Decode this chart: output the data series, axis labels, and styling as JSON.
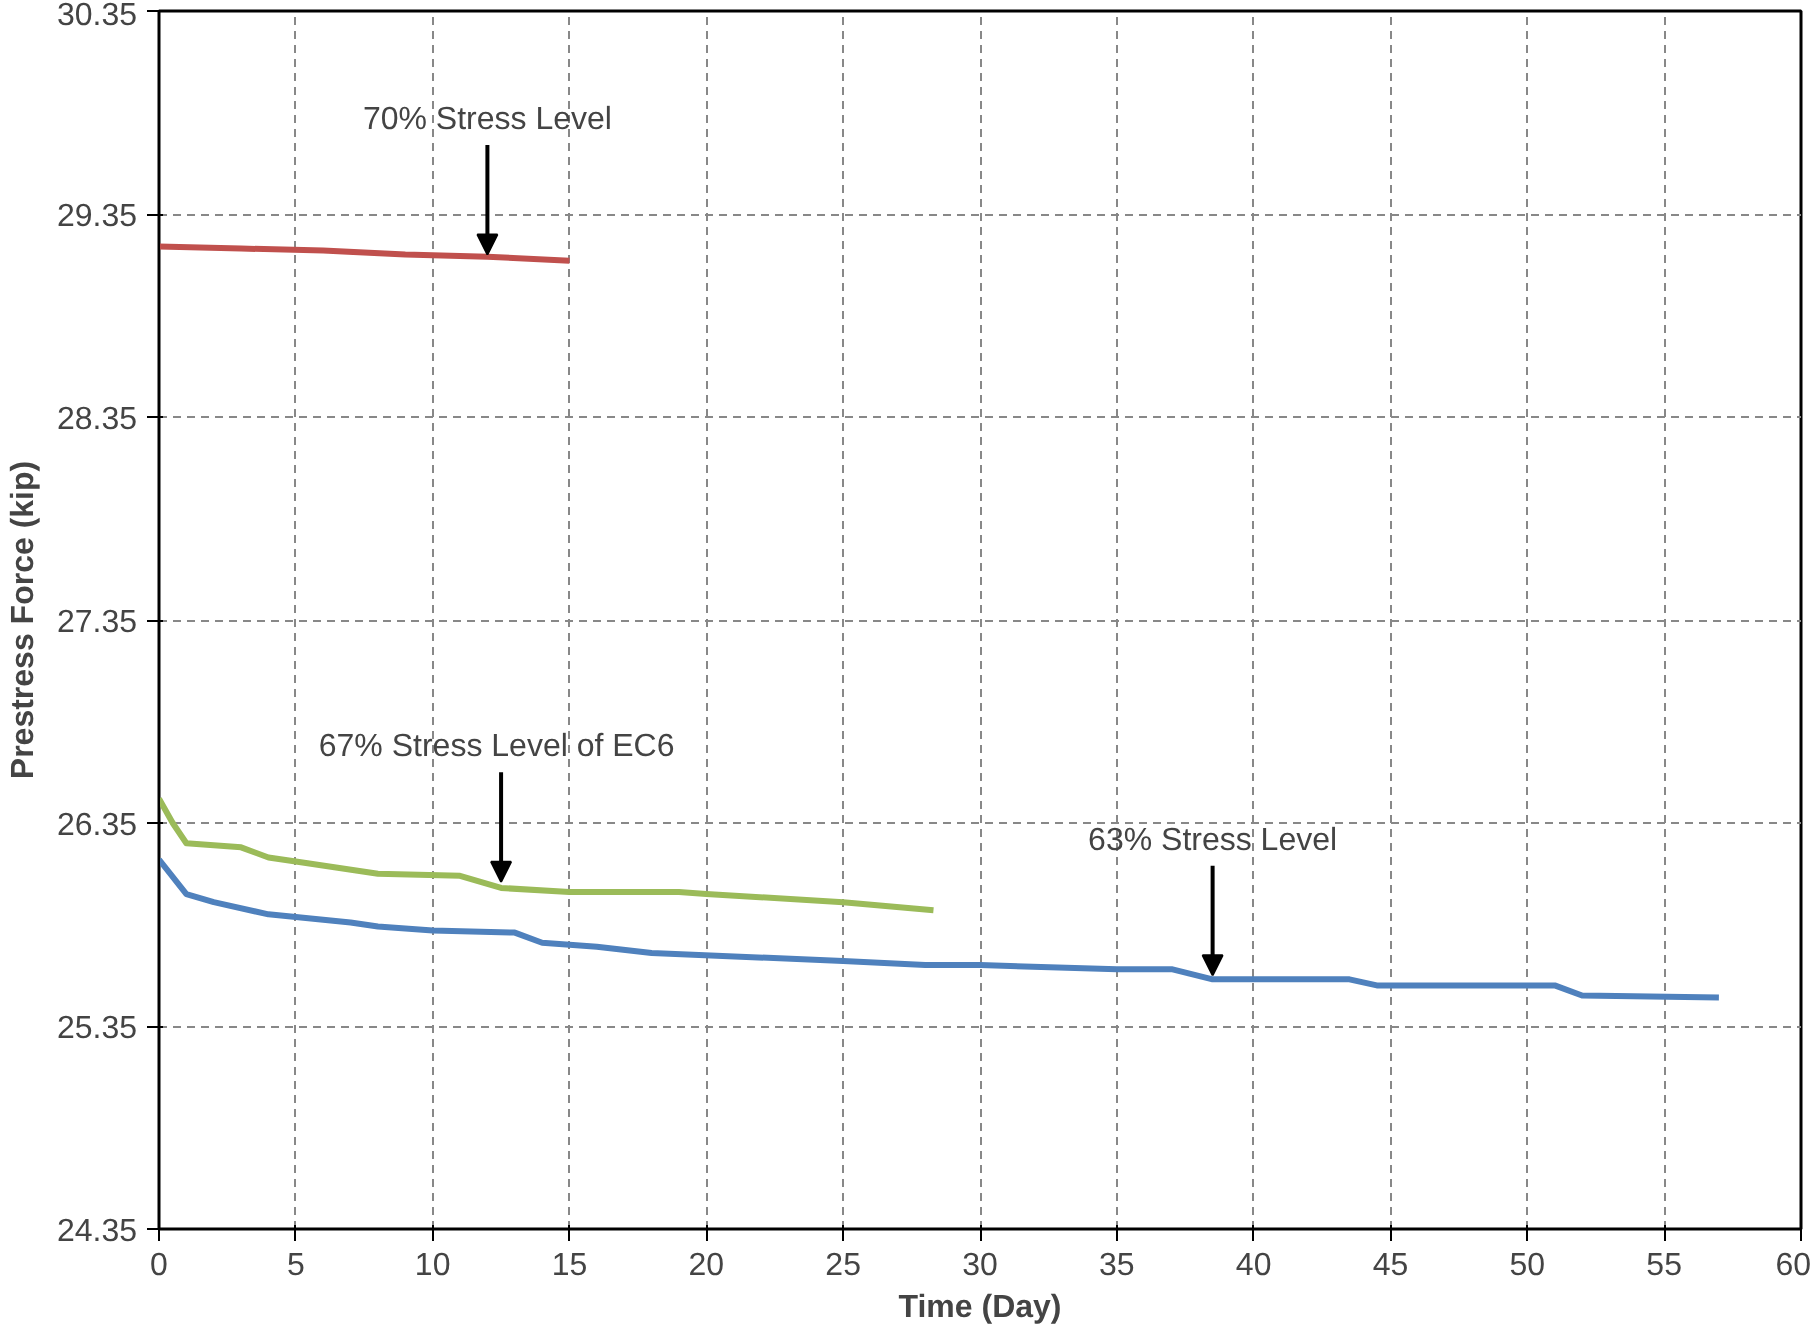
{
  "chart_data": {
    "type": "line",
    "xlabel": "Time (Day)",
    "ylabel": "Prestress Force (kip)",
    "xlim": [
      0,
      60
    ],
    "ylim": [
      24.35,
      30.35
    ],
    "xticks": [
      0,
      5,
      10,
      15,
      20,
      25,
      30,
      35,
      40,
      45,
      50,
      55,
      60
    ],
    "yticks": [
      24.35,
      25.35,
      26.35,
      27.35,
      28.35,
      29.35,
      30.35
    ],
    "grid": true,
    "line_style": "solid",
    "marker": "none",
    "series": [
      {
        "color": "#c0504d",
        "x": [
          0,
          3,
          6,
          9,
          12,
          15
        ],
        "values": [
          29.19,
          29.18,
          29.17,
          29.15,
          29.14,
          29.12
        ]
      },
      {
        "color": "#9bbb59",
        "x": [
          0,
          0.5,
          1,
          3,
          4,
          5,
          8,
          11,
          12.5,
          15,
          19,
          20,
          25,
          28.3
        ],
        "values": [
          26.47,
          26.35,
          26.25,
          26.23,
          26.18,
          26.16,
          26.1,
          26.09,
          26.03,
          26.01,
          26.01,
          26.0,
          25.96,
          25.92
        ]
      },
      {
        "color": "#4f81bd",
        "x": [
          0,
          1,
          2,
          4,
          7,
          8,
          10,
          13,
          14,
          16,
          18,
          25,
          28,
          30,
          35,
          37,
          38.5,
          43.5,
          44.5,
          51,
          52,
          57
        ],
        "values": [
          26.17,
          26.0,
          25.96,
          25.9,
          25.86,
          25.84,
          25.82,
          25.81,
          25.76,
          25.74,
          25.71,
          25.67,
          25.65,
          25.65,
          25.63,
          25.63,
          25.58,
          25.58,
          25.55,
          25.55,
          25.5,
          25.49
        ]
      }
    ],
    "annotations": [
      {
        "text": "70% Stress Level",
        "x": 12,
        "y": 29.15
      },
      {
        "text": "67% Stress Level of  EC6",
        "x": 12.5,
        "y": 26.06
      },
      {
        "text": "63% Stress Level",
        "x": 38.5,
        "y": 25.6
      }
    ]
  }
}
